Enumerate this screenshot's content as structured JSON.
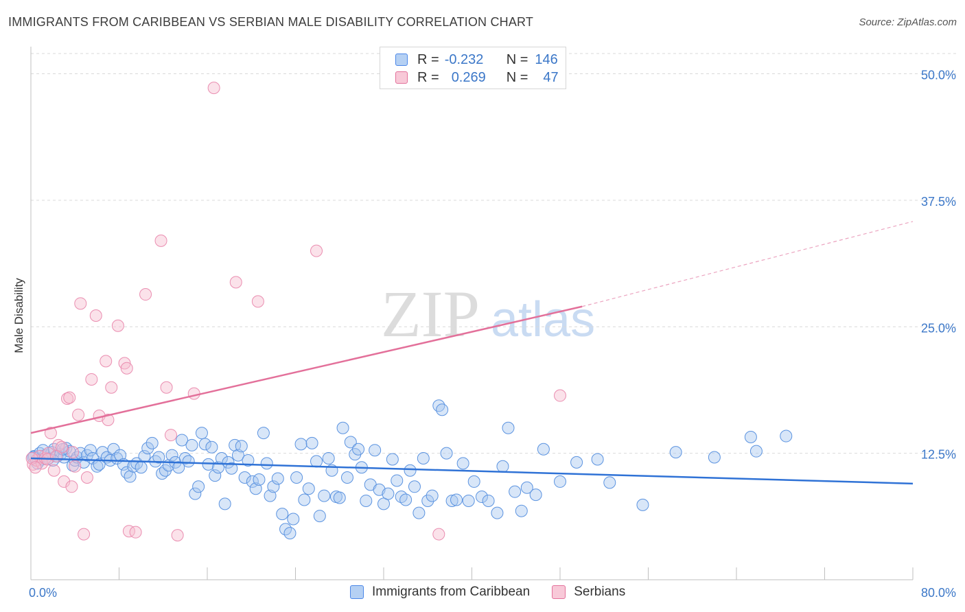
{
  "title": "IMMIGRANTS FROM CARIBBEAN VS SERBIAN MALE DISABILITY CORRELATION CHART",
  "source": "Source: ZipAtlas.com",
  "watermark": {
    "zip": "ZIP",
    "atlas": "atlas"
  },
  "legend_top": {
    "rows": [
      {
        "r_label": "R =",
        "r_value": "-0.232",
        "n_label": "N =",
        "n_value": "146"
      },
      {
        "r_label": "R =",
        "r_value": "0.269",
        "n_label": "N =",
        "n_value": "47"
      }
    ]
  },
  "legend_bottom": {
    "items": [
      {
        "label": "Immigrants from Caribbean"
      },
      {
        "label": "Serbians"
      }
    ]
  },
  "chart_data": {
    "type": "scatter",
    "title": "IMMIGRANTS FROM CARIBBEAN VS SERBIAN MALE DISABILITY CORRELATION CHART",
    "xlabel": "",
    "ylabel": "Male Disability",
    "xlim": [
      0,
      80
    ],
    "ylim": [
      0,
      52
    ],
    "x_tick_labels": [
      "0.0%",
      "80.0%"
    ],
    "y_ticks": [
      12.5,
      25.0,
      37.5,
      50.0
    ],
    "y_tick_labels": [
      "12.5%",
      "25.0%",
      "37.5%",
      "50.0%"
    ],
    "grid": true,
    "legend_position": "top-center",
    "colors": {
      "caribbean": "#4a86e8",
      "caribbean_fill": "#a9c8f0",
      "serbian": "#e3709a",
      "serbian_fill": "#f6bfd1",
      "axis_text": "#3b77c8"
    },
    "series": [
      {
        "name": "Immigrants from Caribbean",
        "color": "#4a86e8",
        "trend": {
          "x": [
            0,
            80
          ],
          "y": [
            12.0,
            9.5
          ]
        },
        "points": [
          [
            0.3,
            12.2
          ],
          [
            0.5,
            11.8
          ],
          [
            0.8,
            12.5
          ],
          [
            1.0,
            11.9
          ],
          [
            1.3,
            12.3
          ],
          [
            1.6,
            12.0
          ],
          [
            1.9,
            12.6
          ],
          [
            2.1,
            12.9
          ],
          [
            2.4,
            12.2
          ],
          [
            2.7,
            12.4
          ],
          [
            3.0,
            12.1
          ],
          [
            3.2,
            13.0
          ],
          [
            3.5,
            12.7
          ],
          [
            3.8,
            11.3
          ],
          [
            4.0,
            11.8
          ],
          [
            4.2,
            12.1
          ],
          [
            4.5,
            12.5
          ],
          [
            4.8,
            11.6
          ],
          [
            5.1,
            12.3
          ],
          [
            5.4,
            12.8
          ],
          [
            5.6,
            12.0
          ],
          [
            6.0,
            11.2
          ],
          [
            6.2,
            11.4
          ],
          [
            6.5,
            12.6
          ],
          [
            6.9,
            12.1
          ],
          [
            7.2,
            11.8
          ],
          [
            7.5,
            12.9
          ],
          [
            7.8,
            12.0
          ],
          [
            8.1,
            12.3
          ],
          [
            8.4,
            11.4
          ],
          [
            8.7,
            10.6
          ],
          [
            9.0,
            10.2
          ],
          [
            9.3,
            11.2
          ],
          [
            9.6,
            11.5
          ],
          [
            10.0,
            11.1
          ],
          [
            10.3,
            12.2
          ],
          [
            10.6,
            13.0
          ],
          [
            11.0,
            13.5
          ],
          [
            11.3,
            11.7
          ],
          [
            11.6,
            12.1
          ],
          [
            11.9,
            10.5
          ],
          [
            12.2,
            10.8
          ],
          [
            12.5,
            11.3
          ],
          [
            12.8,
            12.3
          ],
          [
            13.1,
            11.6
          ],
          [
            13.4,
            11.1
          ],
          [
            13.7,
            13.8
          ],
          [
            14.0,
            12.0
          ],
          [
            14.3,
            11.7
          ],
          [
            14.6,
            13.3
          ],
          [
            14.9,
            8.5
          ],
          [
            15.2,
            9.2
          ],
          [
            15.5,
            14.5
          ],
          [
            15.8,
            13.4
          ],
          [
            16.1,
            11.4
          ],
          [
            16.4,
            13.1
          ],
          [
            16.7,
            10.3
          ],
          [
            17.0,
            11.1
          ],
          [
            17.3,
            12.0
          ],
          [
            17.6,
            7.5
          ],
          [
            17.9,
            11.6
          ],
          [
            18.2,
            11.0
          ],
          [
            18.5,
            13.3
          ],
          [
            18.8,
            12.3
          ],
          [
            19.1,
            13.2
          ],
          [
            19.4,
            10.1
          ],
          [
            19.7,
            11.8
          ],
          [
            20.1,
            9.7
          ],
          [
            20.4,
            9.0
          ],
          [
            20.7,
            9.9
          ],
          [
            21.1,
            14.5
          ],
          [
            21.4,
            11.5
          ],
          [
            21.7,
            8.3
          ],
          [
            22.0,
            9.2
          ],
          [
            22.4,
            10.0
          ],
          [
            22.8,
            6.5
          ],
          [
            23.1,
            5.0
          ],
          [
            23.5,
            4.6
          ],
          [
            23.8,
            6.0
          ],
          [
            24.1,
            10.1
          ],
          [
            24.5,
            13.4
          ],
          [
            24.8,
            7.9
          ],
          [
            25.2,
            9.0
          ],
          [
            25.5,
            13.5
          ],
          [
            25.9,
            11.7
          ],
          [
            26.2,
            6.3
          ],
          [
            26.6,
            8.3
          ],
          [
            27.0,
            12.0
          ],
          [
            27.3,
            10.8
          ],
          [
            27.7,
            8.2
          ],
          [
            28.0,
            8.1
          ],
          [
            28.3,
            15.0
          ],
          [
            28.7,
            10.1
          ],
          [
            29.0,
            13.6
          ],
          [
            29.4,
            12.4
          ],
          [
            29.7,
            12.9
          ],
          [
            30.0,
            11.1
          ],
          [
            30.4,
            7.8
          ],
          [
            30.8,
            9.4
          ],
          [
            31.2,
            12.8
          ],
          [
            31.6,
            8.9
          ],
          [
            32.0,
            7.5
          ],
          [
            32.4,
            8.5
          ],
          [
            32.8,
            11.9
          ],
          [
            33.2,
            9.8
          ],
          [
            33.6,
            8.2
          ],
          [
            34.0,
            7.9
          ],
          [
            34.4,
            10.8
          ],
          [
            34.8,
            9.2
          ],
          [
            35.2,
            6.6
          ],
          [
            35.6,
            12.0
          ],
          [
            36.0,
            7.8
          ],
          [
            36.4,
            8.3
          ],
          [
            37.0,
            17.2
          ],
          [
            37.3,
            16.8
          ],
          [
            37.7,
            12.5
          ],
          [
            38.2,
            7.8
          ],
          [
            38.6,
            7.9
          ],
          [
            39.2,
            11.5
          ],
          [
            39.7,
            7.8
          ],
          [
            40.2,
            9.7
          ],
          [
            40.9,
            8.2
          ],
          [
            41.5,
            7.8
          ],
          [
            42.3,
            6.6
          ],
          [
            42.8,
            11.2
          ],
          [
            43.3,
            15.0
          ],
          [
            43.9,
            8.7
          ],
          [
            44.5,
            6.8
          ],
          [
            45.0,
            9.1
          ],
          [
            45.8,
            8.4
          ],
          [
            46.5,
            12.9
          ],
          [
            48.0,
            9.7
          ],
          [
            49.5,
            11.6
          ],
          [
            51.4,
            11.9
          ],
          [
            52.5,
            9.6
          ],
          [
            55.5,
            7.4
          ],
          [
            58.5,
            12.6
          ],
          [
            62.0,
            12.1
          ],
          [
            65.3,
            14.1
          ],
          [
            65.8,
            12.7
          ],
          [
            68.5,
            14.2
          ],
          [
            0.2,
            12.1
          ],
          [
            0.6,
            11.5
          ],
          [
            1.1,
            12.8
          ],
          [
            2.0,
            11.8
          ],
          [
            2.9,
            12.9
          ]
        ]
      },
      {
        "name": "Serbians",
        "color": "#e3709a",
        "trend": {
          "x": [
            0,
            50
          ],
          "y": [
            14.5,
            27.0
          ]
        },
        "trend_dashed": {
          "x": [
            50,
            80
          ],
          "y": [
            27.0,
            35.4
          ]
        },
        "points": [
          [
            0.2,
            11.4
          ],
          [
            0.5,
            11.8
          ],
          [
            0.8,
            12.2
          ],
          [
            1.0,
            11.5
          ],
          [
            1.3,
            12.0
          ],
          [
            1.6,
            12.5
          ],
          [
            1.8,
            14.5
          ],
          [
            2.1,
            10.8
          ],
          [
            2.5,
            13.3
          ],
          [
            2.8,
            13.1
          ],
          [
            3.0,
            9.7
          ],
          [
            3.3,
            17.9
          ],
          [
            3.5,
            18.0
          ],
          [
            3.7,
            9.2
          ],
          [
            4.0,
            11.2
          ],
          [
            4.3,
            16.3
          ],
          [
            4.5,
            27.3
          ],
          [
            4.8,
            4.5
          ],
          [
            5.1,
            10.1
          ],
          [
            5.5,
            19.8
          ],
          [
            5.9,
            26.1
          ],
          [
            6.2,
            16.2
          ],
          [
            6.8,
            21.6
          ],
          [
            7.0,
            15.8
          ],
          [
            7.3,
            19.0
          ],
          [
            7.9,
            25.1
          ],
          [
            8.5,
            21.4
          ],
          [
            8.7,
            20.9
          ],
          [
            8.9,
            4.8
          ],
          [
            9.5,
            4.7
          ],
          [
            10.4,
            28.2
          ],
          [
            11.8,
            33.5
          ],
          [
            12.3,
            19.0
          ],
          [
            12.7,
            14.3
          ],
          [
            13.3,
            4.4
          ],
          [
            14.8,
            18.4
          ],
          [
            16.6,
            48.6
          ],
          [
            18.6,
            29.4
          ],
          [
            20.6,
            27.5
          ],
          [
            25.9,
            32.5
          ],
          [
            37.0,
            4.5
          ],
          [
            48.0,
            18.2
          ],
          [
            0.1,
            12.0
          ],
          [
            0.4,
            11.1
          ],
          [
            1.5,
            11.9
          ],
          [
            2.3,
            12.2
          ],
          [
            3.8,
            12.6
          ]
        ]
      }
    ]
  }
}
